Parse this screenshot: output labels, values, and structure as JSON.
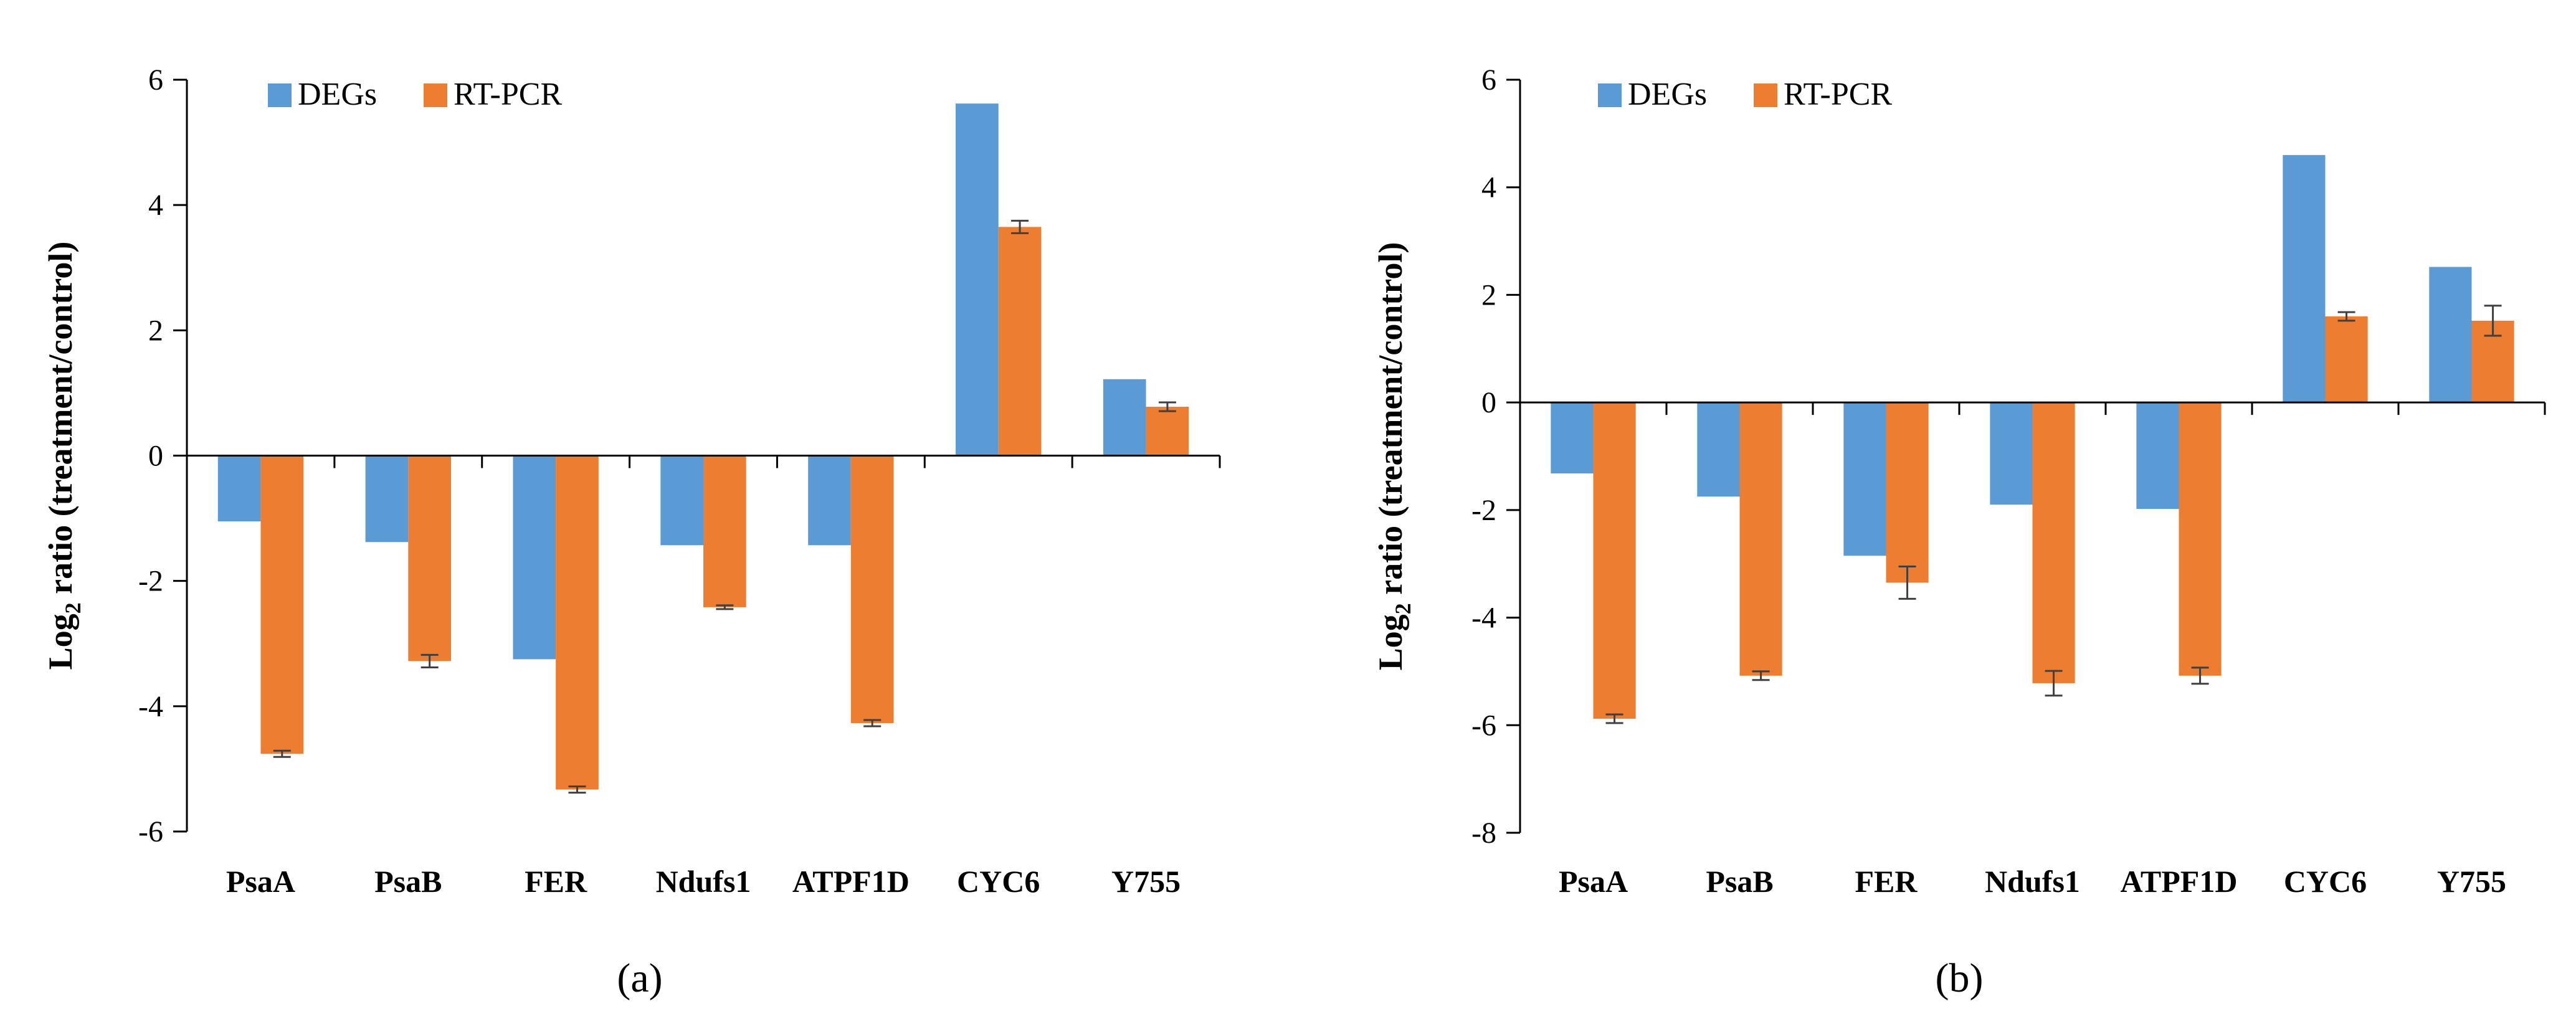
{
  "colors": {
    "degs": "#5b9bd5",
    "rtpcr": "#ed7d31",
    "axis": "#000000",
    "err": "#404040"
  },
  "chart_data": [
    {
      "type": "bar",
      "panel_label": "(a)",
      "categories": [
        "PsaA",
        "PsaB",
        "FER",
        "Ndufs1",
        "ATPF1D",
        "CYC6",
        "Y755"
      ],
      "series": [
        {
          "name": "DEGs",
          "values": [
            -1.05,
            -1.38,
            -3.25,
            -1.43,
            -1.43,
            5.62,
            1.22
          ]
        },
        {
          "name": "RT-PCR",
          "values": [
            -4.76,
            -3.28,
            -5.33,
            -2.42,
            -4.27,
            3.65,
            0.78
          ],
          "errors": [
            0.05,
            0.1,
            0.05,
            0.03,
            0.05,
            0.1,
            0.07
          ]
        }
      ],
      "ylabel_main": "Log",
      "ylabel_sub": "2",
      "ylabel_rest": " ratio  (treatment/control)",
      "ylim": [
        -6,
        6
      ],
      "yticks": [
        6,
        4,
        2,
        0,
        -2,
        -4,
        -6
      ],
      "legend": "top-left"
    },
    {
      "type": "bar",
      "panel_label": "(b)",
      "categories": [
        "PsaA",
        "PsaB",
        "FER",
        "Ndufs1",
        "ATPF1D",
        "CYC6",
        "Y755"
      ],
      "series": [
        {
          "name": "DEGs",
          "values": [
            -1.32,
            -1.75,
            -2.85,
            -1.9,
            -1.98,
            4.6,
            2.52
          ]
        },
        {
          "name": "RT-PCR",
          "values": [
            -5.88,
            -5.08,
            -3.35,
            -5.22,
            -5.08,
            1.6,
            1.52
          ],
          "errors": [
            0.08,
            0.08,
            0.3,
            0.23,
            0.15,
            0.08,
            0.28
          ]
        }
      ],
      "ylabel_main": "Log",
      "ylabel_sub": "2",
      "ylabel_rest": " ratio  (treatment/control)",
      "ylim": [
        -8,
        6
      ],
      "yticks": [
        6,
        4,
        2,
        0,
        -2,
        -4,
        -6,
        -8
      ],
      "legend": "top-left"
    }
  ]
}
